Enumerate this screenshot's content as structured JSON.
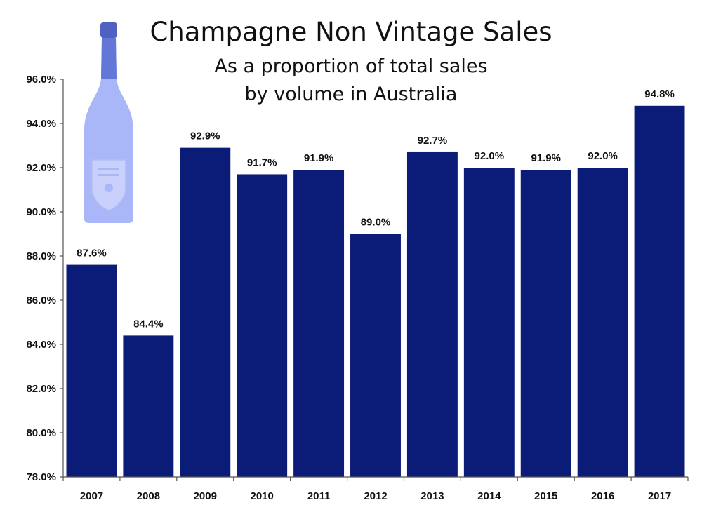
{
  "colors": {
    "bar": "#0b1b78",
    "axis": "#555555",
    "bottle_glass": "#a9b6f7",
    "bottle_neck": "#5f73d1",
    "bottle_label": "#c8d0fb"
  },
  "icons": {
    "bottle": "champagne-bottle-icon"
  },
  "chart_data": {
    "type": "bar",
    "title": "Champagne Non Vintage Sales",
    "subtitle_line1": "As a proportion of total sales",
    "subtitle_line2": "by volume in Australia",
    "xlabel": "",
    "ylabel": "",
    "categories": [
      "2007",
      "2008",
      "2009",
      "2010",
      "2011",
      "2012",
      "2013",
      "2014",
      "2015",
      "2016",
      "2017"
    ],
    "values": [
      87.6,
      84.4,
      92.9,
      91.7,
      91.9,
      89.0,
      92.7,
      92.0,
      91.9,
      92.0,
      94.8
    ],
    "data_labels": [
      "87.6%",
      "84.4%",
      "92.9%",
      "91.7%",
      "91.9%",
      "89.0%",
      "92.7%",
      "92.0%",
      "91.9%",
      "92.0%",
      "94.8%"
    ],
    "ylim": [
      78,
      96
    ],
    "yticks": [
      78,
      80,
      82,
      84,
      86,
      88,
      90,
      92,
      94,
      96
    ],
    "ytick_labels": [
      "78.0%",
      "80.0%",
      "82.0%",
      "84.0%",
      "86.0%",
      "88.0%",
      "90.0%",
      "92.0%",
      "94.0%",
      "96.0%"
    ],
    "grid": false,
    "legend": "none"
  }
}
